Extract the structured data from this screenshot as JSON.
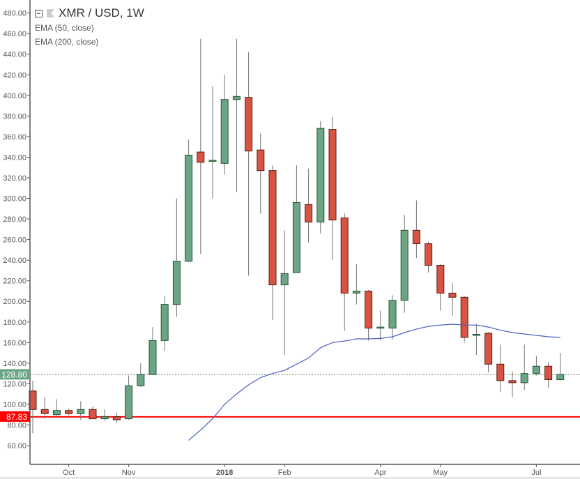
{
  "legend": {
    "title": "XMR / USD, 1W",
    "indicators": [
      "EMA (50, close)",
      "EMA (200, close)"
    ]
  },
  "chart_data": {
    "type": "candlestick",
    "title": "XMR / USD, 1W",
    "ylim": [
      40,
      490
    ],
    "y_ticks": [
      "60.00",
      "80.00",
      "100.00",
      "120.00",
      "140.00",
      "160.00",
      "180.00",
      "200.00",
      "220.00",
      "240.00",
      "260.00",
      "280.00",
      "300.00",
      "320.00",
      "340.00",
      "360.00",
      "380.00",
      "400.00",
      "420.00",
      "440.00",
      "460.00",
      "480.00"
    ],
    "x_ticks": [
      {
        "index": 3,
        "label": "Oct",
        "bold": false
      },
      {
        "index": 8,
        "label": "Nov",
        "bold": false
      },
      {
        "index": 16,
        "label": "2018",
        "bold": true
      },
      {
        "index": 21,
        "label": "Feb",
        "bold": false
      },
      {
        "index": 29,
        "label": "Apr",
        "bold": false
      },
      {
        "index": 34,
        "label": "May",
        "bold": false
      },
      {
        "index": 42,
        "label": "Jul",
        "bold": false
      }
    ],
    "ohlc": [
      [
        113,
        123,
        72,
        95
      ],
      [
        95,
        107,
        86,
        91
      ],
      [
        90,
        105,
        89,
        94
      ],
      [
        94,
        96,
        89,
        91
      ],
      [
        91,
        103,
        85,
        95
      ],
      [
        95,
        98,
        86,
        86
      ],
      [
        86,
        95,
        84,
        88
      ],
      [
        88,
        92,
        82,
        85
      ],
      [
        86,
        128,
        85,
        118
      ],
      [
        118,
        140,
        117,
        129
      ],
      [
        129,
        175,
        129,
        162
      ],
      [
        162,
        205,
        152,
        197
      ],
      [
        197,
        300,
        185,
        239
      ],
      [
        239,
        357,
        238,
        342
      ],
      [
        345,
        455,
        246,
        335
      ],
      [
        336,
        409,
        300,
        337
      ],
      [
        334,
        420,
        323,
        396
      ],
      [
        396,
        455,
        306,
        399
      ],
      [
        398,
        442,
        225,
        346
      ],
      [
        347,
        363,
        285,
        327
      ],
      [
        327,
        332,
        182,
        216
      ],
      [
        216,
        269,
        148,
        227
      ],
      [
        228,
        332,
        228,
        296
      ],
      [
        294,
        329,
        257,
        277
      ],
      [
        277,
        375,
        266,
        368
      ],
      [
        367,
        379,
        240,
        279
      ],
      [
        281,
        286,
        171,
        208
      ],
      [
        208,
        236,
        197,
        210
      ],
      [
        210,
        211,
        162,
        174
      ],
      [
        174,
        191,
        162,
        175
      ],
      [
        174,
        206,
        163,
        201
      ],
      [
        201,
        284,
        189,
        269
      ],
      [
        269,
        298,
        242,
        256
      ],
      [
        256,
        258,
        228,
        235
      ],
      [
        235,
        236,
        191,
        208
      ],
      [
        208,
        218,
        186,
        204
      ],
      [
        204,
        205,
        160,
        165
      ],
      [
        167,
        178,
        148,
        168
      ],
      [
        169,
        170,
        131,
        139
      ],
      [
        139,
        158,
        112,
        123
      ],
      [
        123,
        132,
        107,
        121
      ],
      [
        121,
        158,
        114,
        130
      ],
      [
        130,
        147,
        128,
        137
      ],
      [
        137,
        141,
        116,
        124
      ],
      [
        124,
        150,
        123,
        129
      ]
    ],
    "ema": {
      "name": "EMA (50, close)",
      "start_index": 13,
      "values": [
        65,
        75,
        86,
        100,
        110,
        119,
        126,
        130,
        133,
        139,
        145,
        155,
        160,
        161.5,
        163.6,
        163.6,
        164,
        165.6,
        169.7,
        173,
        175.8,
        177,
        177.8,
        177,
        177,
        175,
        172,
        169.7,
        168.3,
        167,
        165.6,
        165
      ]
    },
    "price_lines": [
      {
        "label": "128.80",
        "value": 128.8,
        "style": "dotted",
        "color": "#6ba583"
      },
      {
        "label": "87.83",
        "value": 87.83,
        "style": "solid",
        "color": "#ff0000"
      }
    ],
    "colors": {
      "up": "#6ba583",
      "up_border": "#225437",
      "down": "#d75442",
      "down_border": "#5b1a13",
      "wick": "#737373",
      "ema": "#4a5fc1"
    }
  }
}
